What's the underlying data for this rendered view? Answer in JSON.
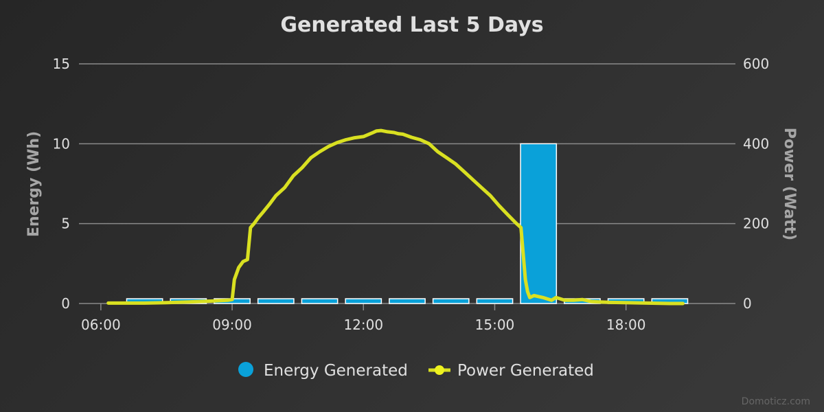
{
  "chart_data": {
    "type": "bar",
    "title": "Generated Last 5 Days",
    "x_tick_labels": [
      "06:00",
      "09:00",
      "12:00",
      "15:00",
      "18:00"
    ],
    "x_tick_hours": [
      6,
      9,
      12,
      15,
      18
    ],
    "x_range_hours": [
      5.5,
      20.5
    ],
    "y_left": {
      "label": "Energy (Wh)",
      "range": [
        0,
        15
      ],
      "ticks": [
        0,
        5,
        10,
        15
      ]
    },
    "y_right": {
      "label": "Power (Watt)",
      "range": [
        0,
        600
      ],
      "ticks": [
        0,
        200,
        400,
        600
      ]
    },
    "grid": true,
    "legend": "bottom-center",
    "series": [
      {
        "name": "Energy Generated",
        "type": "bar",
        "axis": "left",
        "color": "#0aa1d9",
        "x_hours": [
          7.0,
          8.0,
          9.0,
          10.0,
          11.0,
          12.0,
          13.0,
          14.0,
          15.0,
          16.0,
          17.0,
          18.0,
          19.0
        ],
        "values": [
          0.3,
          0.3,
          0.3,
          0.3,
          0.3,
          0.3,
          0.3,
          0.3,
          0.3,
          10.0,
          0.3,
          0.3,
          0.3
        ]
      },
      {
        "name": "Power Generated",
        "type": "line",
        "axis": "right",
        "color": "#d9e021",
        "x_hours": [
          6.17,
          6.5,
          7.0,
          7.5,
          8.0,
          8.5,
          8.9,
          9.0,
          9.05,
          9.15,
          9.25,
          9.35,
          9.42,
          9.5,
          9.6,
          9.7,
          9.85,
          10.0,
          10.2,
          10.4,
          10.6,
          10.8,
          11.0,
          11.2,
          11.4,
          11.6,
          11.8,
          12.0,
          12.2,
          12.3,
          12.4,
          12.55,
          12.7,
          12.8,
          12.9,
          13.1,
          13.3,
          13.5,
          13.7,
          13.9,
          14.1,
          14.3,
          14.5,
          14.7,
          14.9,
          15.1,
          15.3,
          15.5,
          15.6,
          15.65,
          15.7,
          15.75,
          15.8,
          15.9,
          16.1,
          16.3,
          16.4,
          16.6,
          16.8,
          17.0,
          17.2,
          17.4,
          17.6,
          18.0,
          18.5,
          19.0,
          19.3
        ],
        "values": [
          1,
          1,
          1,
          2,
          4,
          6,
          8,
          10,
          60,
          90,
          105,
          110,
          190,
          200,
          215,
          228,
          248,
          270,
          290,
          320,
          340,
          365,
          380,
          393,
          403,
          410,
          415,
          418,
          427,
          432,
          433,
          430,
          428,
          425,
          424,
          416,
          410,
          400,
          380,
          365,
          350,
          330,
          310,
          290,
          270,
          245,
          222,
          200,
          190,
          125,
          60,
          30,
          15,
          20,
          15,
          8,
          15,
          8,
          8,
          10,
          5,
          4,
          3,
          2,
          1,
          0,
          0
        ]
      }
    ]
  }
}
